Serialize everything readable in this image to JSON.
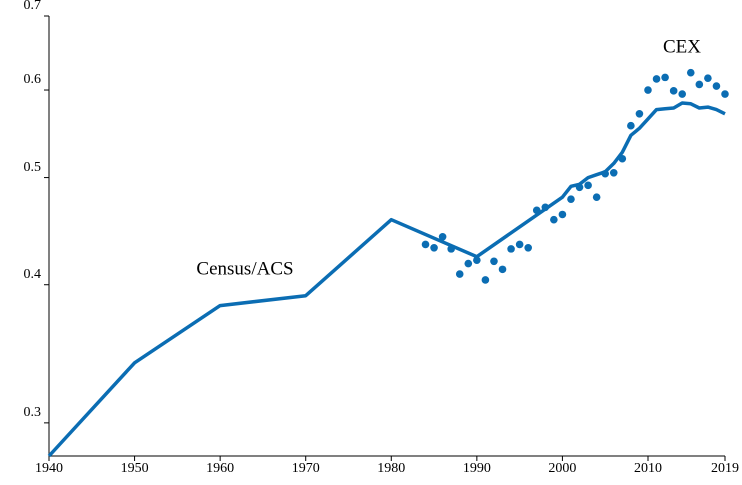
{
  "chart_data": {
    "type": "line",
    "annotations": [
      "Census/ACS",
      "CEX"
    ],
    "xlim": [
      1940,
      2019
    ],
    "xticks": [
      1940,
      1950,
      1960,
      1970,
      1980,
      1990,
      2000,
      2010,
      2019
    ],
    "ylim": [
      0.28,
      0.7
    ],
    "yticks": [
      0.3,
      0.4,
      0.5,
      0.6,
      0.7
    ],
    "log_y": true,
    "grid": false,
    "series": [
      {
        "type": "line",
        "color": "#0b6db3",
        "x": [
          1940,
          1950,
          1960,
          1970,
          1980,
          1990,
          2000,
          2001,
          2002,
          2003,
          2004,
          2005,
          2006,
          2007,
          2008,
          2009,
          2010,
          2011,
          2012,
          2013,
          2014,
          2015,
          2016,
          2017,
          2018,
          2019
        ],
        "values": [
          0.28,
          0.34,
          0.383,
          0.391,
          0.458,
          0.424,
          0.48,
          0.491,
          0.493,
          0.5,
          0.503,
          0.506,
          0.515,
          0.527,
          0.546,
          0.554,
          0.565,
          0.576,
          0.577,
          0.578,
          0.584,
          0.583,
          0.578,
          0.579,
          0.576,
          0.571
        ]
      },
      {
        "type": "scatter",
        "color": "#0b6db3",
        "x": [
          1984,
          1985,
          1986,
          1987,
          1988,
          1989,
          1990,
          1991,
          1992,
          1993,
          1994,
          1995,
          1996,
          1997,
          1998,
          1999,
          2000,
          2001,
          2002,
          2003,
          2004,
          2005,
          2006,
          2007,
          2008,
          2009,
          2010,
          2011,
          2012,
          2013,
          2014,
          2015,
          2016,
          2017,
          2018,
          2019
        ],
        "values": [
          0.435,
          0.432,
          0.442,
          0.431,
          0.409,
          0.418,
          0.421,
          0.404,
          0.42,
          0.413,
          0.431,
          0.435,
          0.432,
          0.467,
          0.47,
          0.458,
          0.463,
          0.478,
          0.49,
          0.492,
          0.48,
          0.504,
          0.505,
          0.52,
          0.557,
          0.571,
          0.6,
          0.614,
          0.616,
          0.599,
          0.595,
          0.622,
          0.607,
          0.615,
          0.605,
          0.595
        ]
      }
    ]
  }
}
